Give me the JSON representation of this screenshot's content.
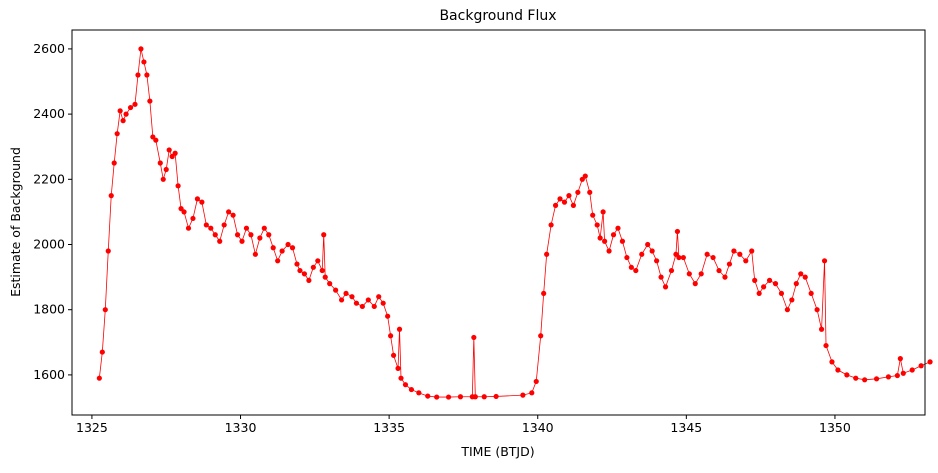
{
  "chart_data": {
    "type": "line",
    "title": "Background Flux",
    "xlabel": "TIME (BTJD)",
    "ylabel": "Estimate of Background",
    "color": "#ff0000",
    "x": [
      1325.25,
      1325.35,
      1325.45,
      1325.55,
      1325.65,
      1325.75,
      1325.85,
      1325.95,
      1326.05,
      1326.15,
      1326.3,
      1326.45,
      1326.55,
      1326.65,
      1326.75,
      1326.85,
      1326.95,
      1327.05,
      1327.15,
      1327.3,
      1327.4,
      1327.5,
      1327.6,
      1327.7,
      1327.8,
      1327.9,
      1328.0,
      1328.1,
      1328.25,
      1328.4,
      1328.55,
      1328.7,
      1328.85,
      1329.0,
      1329.15,
      1329.3,
      1329.45,
      1329.6,
      1329.75,
      1329.9,
      1330.05,
      1330.2,
      1330.35,
      1330.5,
      1330.65,
      1330.8,
      1330.95,
      1331.1,
      1331.25,
      1331.4,
      1331.6,
      1331.75,
      1331.9,
      1332.0,
      1332.15,
      1332.3,
      1332.45,
      1332.6,
      1332.75,
      1332.8,
      1332.85,
      1333.0,
      1333.2,
      1333.4,
      1333.55,
      1333.75,
      1333.9,
      1334.1,
      1334.3,
      1334.5,
      1334.65,
      1334.8,
      1334.95,
      1335.05,
      1335.15,
      1335.3,
      1335.35,
      1335.4,
      1335.55,
      1335.75,
      1336.0,
      1336.3,
      1336.6,
      1337.0,
      1337.4,
      1337.8,
      1337.85,
      1337.9,
      1338.2,
      1338.6,
      1339.5,
      1339.8,
      1339.95,
      1340.1,
      1340.2,
      1340.3,
      1340.45,
      1340.6,
      1340.75,
      1340.9,
      1341.05,
      1341.2,
      1341.35,
      1341.5,
      1341.6,
      1341.75,
      1341.85,
      1342.0,
      1342.1,
      1342.2,
      1342.25,
      1342.4,
      1342.55,
      1342.7,
      1342.85,
      1343.0,
      1343.15,
      1343.3,
      1343.5,
      1343.7,
      1343.85,
      1344.0,
      1344.15,
      1344.3,
      1344.5,
      1344.65,
      1344.7,
      1344.75,
      1344.9,
      1345.1,
      1345.3,
      1345.5,
      1345.7,
      1345.9,
      1346.1,
      1346.3,
      1346.45,
      1346.6,
      1346.8,
      1347.0,
      1347.2,
      1347.3,
      1347.45,
      1347.6,
      1347.8,
      1348.0,
      1348.2,
      1348.4,
      1348.55,
      1348.7,
      1348.85,
      1349.0,
      1349.2,
      1349.4,
      1349.55,
      1349.65,
      1349.7,
      1349.9,
      1350.1,
      1350.4,
      1350.7,
      1351.0,
      1351.4,
      1351.8,
      1352.1,
      1352.2,
      1352.3,
      1352.6,
      1352.9,
      1353.2
    ],
    "values": [
      1590,
      1670,
      1800,
      1980,
      2150,
      2250,
      2340,
      2410,
      2380,
      2400,
      2420,
      2430,
      2520,
      2600,
      2560,
      2520,
      2440,
      2330,
      2320,
      2250,
      2200,
      2230,
      2290,
      2270,
      2280,
      2180,
      2110,
      2100,
      2050,
      2080,
      2140,
      2130,
      2060,
      2050,
      2030,
      2010,
      2060,
      2100,
      2090,
      2030,
      2010,
      2050,
      2030,
      1970,
      2020,
      2050,
      2030,
      1990,
      1950,
      1980,
      2000,
      1990,
      1940,
      1920,
      1910,
      1890,
      1930,
      1950,
      1920,
      2030,
      1900,
      1880,
      1860,
      1830,
      1850,
      1840,
      1820,
      1810,
      1830,
      1810,
      1840,
      1820,
      1780,
      1720,
      1660,
      1620,
      1740,
      1590,
      1570,
      1555,
      1545,
      1535,
      1532,
      1532,
      1533,
      1533,
      1715,
      1533,
      1533,
      1534,
      1538,
      1545,
      1580,
      1720,
      1850,
      1970,
      2060,
      2120,
      2140,
      2130,
      2150,
      2120,
      2160,
      2200,
      2210,
      2160,
      2090,
      2060,
      2020,
      2100,
      2010,
      1980,
      2030,
      2050,
      2010,
      1960,
      1930,
      1920,
      1970,
      2000,
      1980,
      1950,
      1900,
      1870,
      1920,
      1970,
      2040,
      1960,
      1960,
      1910,
      1880,
      1910,
      1970,
      1960,
      1920,
      1900,
      1940,
      1980,
      1970,
      1950,
      1980,
      1890,
      1850,
      1870,
      1890,
      1880,
      1850,
      1800,
      1830,
      1880,
      1910,
      1900,
      1850,
      1800,
      1740,
      1950,
      1690,
      1640,
      1615,
      1600,
      1590,
      1585,
      1588,
      1594,
      1598,
      1650,
      1605,
      1615,
      1628,
      1640
    ],
    "xlim": [
      1324.33,
      1353.03
    ],
    "ylim": [
      1477,
      2658
    ],
    "xticks": [
      1325,
      1330,
      1335,
      1340,
      1345,
      1350
    ],
    "yticks": [
      1600,
      1800,
      2000,
      2200,
      2400,
      2600
    ]
  }
}
